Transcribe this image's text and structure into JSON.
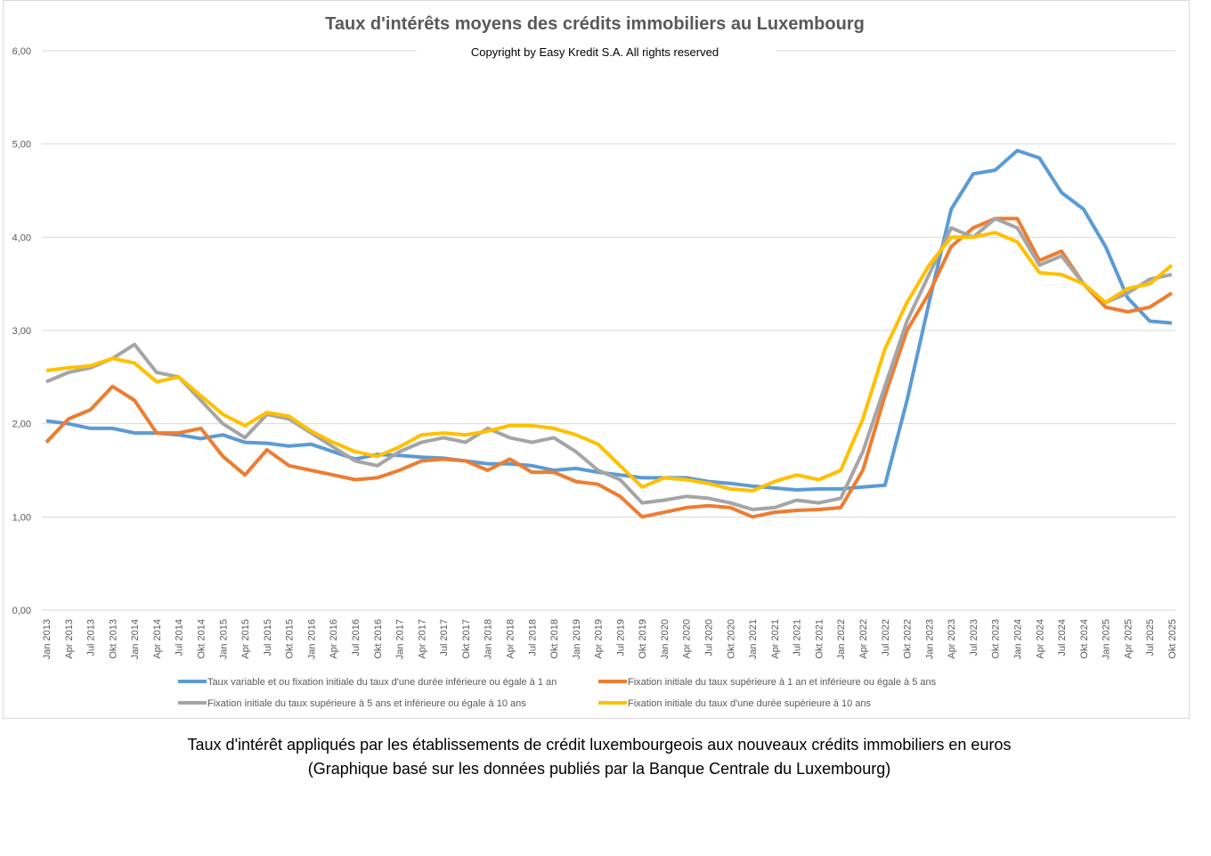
{
  "chart_data": {
    "type": "line",
    "title": "Taux d'intérêts moyens des crédits immobiliers au Luxembourg",
    "subtitle": "Copyright by Easy Kredit S.A. All rights reserved",
    "xlabel": "",
    "ylabel": "",
    "ylim": [
      0,
      6
    ],
    "yticks": [
      "0,00",
      "1,00",
      "2,00",
      "3,00",
      "4,00",
      "5,00",
      "6,00"
    ],
    "grid": true,
    "legend_position": "bottom",
    "categories": [
      "Jan 2013",
      "Apr 2013",
      "Jul 2013",
      "Okt 2013",
      "Jan 2014",
      "Apr 2014",
      "Jul 2014",
      "Okt 2014",
      "Jan 2015",
      "Apr 2015",
      "Jul 2015",
      "Okt 2015",
      "Jan 2016",
      "Apr 2016",
      "Jul 2016",
      "Okt 2016",
      "Jan 2017",
      "Apr 2017",
      "Jul 2017",
      "Okt 2017",
      "Jan 2018",
      "Apr 2018",
      "Jul 2018",
      "Okt 2018",
      "Jan 2019",
      "Apr 2019",
      "Jul 2019",
      "Okt 2019",
      "Jan 2020",
      "Apr 2020",
      "Jul 2020",
      "Okt 2020",
      "Jan 2021",
      "Apr 2021",
      "Jul 2021",
      "Okt 2021",
      "Jan 2022",
      "Apr 2022",
      "Jul 2022",
      "Okt 2022",
      "Jan 2023",
      "Apr 2023",
      "Jul 2023",
      "Okt 2023",
      "Jan 2024",
      "Apr 2024",
      "Jul 2024",
      "Okt 2024",
      "Jan 2025",
      "Apr 2025",
      "Jul 2025",
      "Okt 2025"
    ],
    "series": [
      {
        "name": "Taux variable et ou fixation initiale du taux d'une durée inférieure ou égale à 1 an",
        "color": "#5b9bd5",
        "values": [
          2.03,
          2.0,
          1.95,
          1.95,
          1.9,
          1.9,
          1.88,
          1.84,
          1.88,
          1.8,
          1.79,
          1.76,
          1.78,
          1.7,
          1.62,
          1.67,
          1.66,
          1.64,
          1.63,
          1.6,
          1.57,
          1.57,
          1.55,
          1.5,
          1.52,
          1.48,
          1.45,
          1.42,
          1.42,
          1.42,
          1.38,
          1.36,
          1.33,
          1.31,
          1.29,
          1.3,
          1.3,
          1.32,
          1.34,
          2.25,
          3.3,
          4.3,
          4.68,
          4.72,
          4.93,
          4.85,
          4.48,
          4.3,
          3.9,
          3.35,
          3.1,
          3.08
        ]
      },
      {
        "name": "Fixation initiale du taux supérieure à 1 an et inférieure ou égale à 5 ans",
        "color": "#ed7d31",
        "values": [
          1.8,
          2.05,
          2.15,
          2.4,
          2.25,
          1.9,
          1.9,
          1.95,
          1.65,
          1.45,
          1.72,
          1.55,
          1.5,
          1.45,
          1.4,
          1.42,
          1.5,
          1.6,
          1.62,
          1.6,
          1.5,
          1.62,
          1.48,
          1.48,
          1.38,
          1.35,
          1.22,
          1.0,
          1.05,
          1.1,
          1.12,
          1.1,
          1.0,
          1.05,
          1.07,
          1.08,
          1.1,
          1.5,
          2.3,
          3.0,
          3.4,
          3.9,
          4.1,
          4.2,
          4.2,
          3.75,
          3.85,
          3.5,
          3.25,
          3.2,
          3.25,
          3.4
        ]
      },
      {
        "name": "Fixation initiale du taux supérieure à 5 ans et inférieure ou égale à 10 ans",
        "color": "#a5a5a5",
        "values": [
          2.45,
          2.55,
          2.6,
          2.7,
          2.85,
          2.55,
          2.5,
          2.25,
          2.0,
          1.85,
          2.1,
          2.05,
          1.9,
          1.75,
          1.6,
          1.55,
          1.7,
          1.8,
          1.85,
          1.8,
          1.95,
          1.85,
          1.8,
          1.85,
          1.7,
          1.5,
          1.4,
          1.15,
          1.18,
          1.22,
          1.2,
          1.15,
          1.08,
          1.1,
          1.18,
          1.15,
          1.2,
          1.7,
          2.4,
          3.1,
          3.6,
          4.1,
          4.0,
          4.2,
          4.1,
          3.7,
          3.8,
          3.5,
          3.3,
          3.4,
          3.55,
          3.6
        ]
      },
      {
        "name": "Fixation initiale du taux d'une durée supérieure à 10 ans",
        "color": "#ffc000",
        "values": [
          2.57,
          2.6,
          2.62,
          2.7,
          2.65,
          2.45,
          2.5,
          2.3,
          2.1,
          1.98,
          2.12,
          2.08,
          1.92,
          1.8,
          1.7,
          1.65,
          1.75,
          1.88,
          1.9,
          1.88,
          1.92,
          1.98,
          1.98,
          1.95,
          1.88,
          1.78,
          1.55,
          1.32,
          1.42,
          1.4,
          1.36,
          1.3,
          1.28,
          1.38,
          1.45,
          1.4,
          1.5,
          2.05,
          2.8,
          3.3,
          3.7,
          4.0,
          4.0,
          4.05,
          3.95,
          3.62,
          3.6,
          3.5,
          3.3,
          3.45,
          3.5,
          3.7
        ]
      }
    ]
  },
  "caption": {
    "line1": "Taux d'intérêt appliqués par les établissements de crédit luxembourgeois aux nouveaux crédits immobiliers en euros",
    "line2": "(Graphique basé sur les données publiés par la Banque Centrale du Luxembourg)"
  }
}
